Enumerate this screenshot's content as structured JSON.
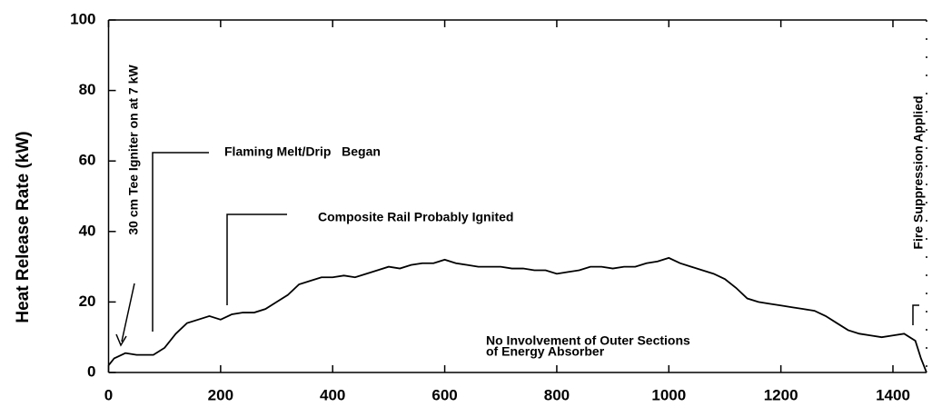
{
  "chart_data": {
    "type": "line",
    "y_label": "Heat Release Rate  (kW)",
    "x": [
      0,
      10,
      30,
      50,
      80,
      100,
      120,
      140,
      160,
      180,
      200,
      220,
      240,
      260,
      280,
      300,
      320,
      340,
      360,
      380,
      400,
      420,
      440,
      460,
      480,
      500,
      520,
      540,
      560,
      580,
      600,
      620,
      640,
      660,
      680,
      700,
      720,
      740,
      760,
      780,
      800,
      820,
      840,
      860,
      880,
      900,
      920,
      940,
      960,
      980,
      1000,
      1020,
      1040,
      1060,
      1080,
      1100,
      1120,
      1140,
      1160,
      1180,
      1200,
      1220,
      1240,
      1260,
      1280,
      1300,
      1320,
      1340,
      1360,
      1380,
      1400,
      1420,
      1440,
      1450,
      1460
    ],
    "series": [
      {
        "name": "Heat Release Rate",
        "color": "#000000",
        "values": [
          2,
          4,
          5.5,
          5,
          5,
          7,
          11,
          14,
          15,
          16,
          15,
          16.5,
          17,
          17,
          18,
          20,
          22,
          25,
          26,
          27,
          27,
          27.5,
          27,
          28,
          29,
          30,
          29.5,
          30.5,
          31,
          31,
          32,
          31,
          30.5,
          30,
          30,
          30,
          29.5,
          29.5,
          29,
          29,
          28,
          28.5,
          29,
          30,
          30,
          29.5,
          30,
          30,
          31,
          31.5,
          32.5,
          31,
          30,
          29,
          28,
          26.5,
          24,
          21,
          20,
          19.5,
          19,
          18.5,
          18,
          17.5,
          16,
          14,
          12,
          11,
          10.5,
          10,
          10.5,
          11,
          9,
          4,
          0
        ]
      }
    ],
    "xlim": [
      0,
      1460
    ],
    "ylim": [
      0,
      100
    ],
    "xticks": [
      0,
      200,
      400,
      600,
      800,
      1000,
      1200,
      1400
    ],
    "yticks": [
      0,
      20,
      40,
      60,
      80,
      100
    ],
    "annotations": [
      "30 cm Tee Igniter on at 7 kW",
      "Flaming Melt/Drip   Began",
      "Composite Rail Probably Ignited",
      "Fire Suppression Applied",
      "No Involvement of Outer Sections",
      "of Energy Absorber"
    ]
  }
}
